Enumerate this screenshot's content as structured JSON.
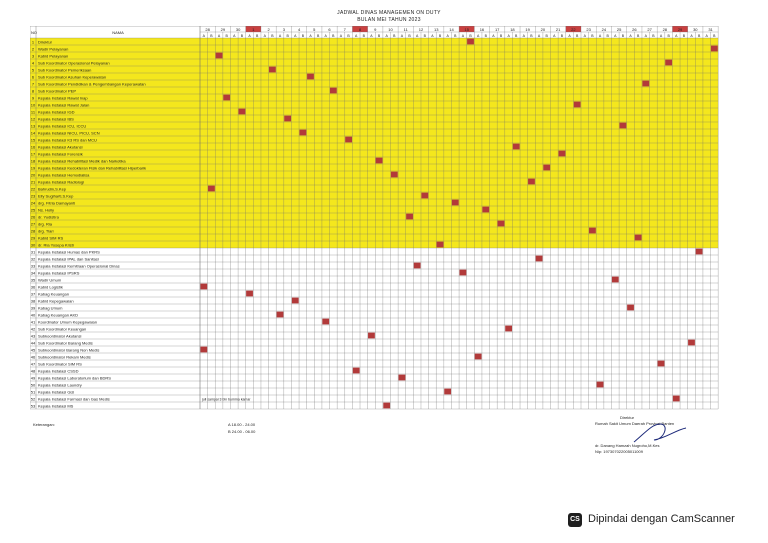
{
  "header": {
    "title": "JADWAL DINAS  MANAGEMEN ON DUTY",
    "subtitle": "BULAN MEI  TAHUN 2023"
  },
  "table": {
    "no_label": "NO",
    "name_label": "NAMA",
    "dates": [
      "28",
      "29",
      "30",
      "1",
      "2",
      "3",
      "4",
      "5",
      "6",
      "7",
      "8",
      "9",
      "10",
      "11",
      "12",
      "13",
      "14",
      "15",
      "16",
      "17",
      "18",
      "19",
      "20",
      "21",
      "22",
      "23",
      "24",
      "25",
      "26",
      "27",
      "28",
      "29",
      "30",
      "31"
    ],
    "shift_labels": [
      "A",
      "B"
    ],
    "highlight_rows": 30,
    "colors": {
      "yellow": "#f4e71d",
      "red": "#b23a3a",
      "line": "#6f6f6f",
      "date_red": "#c94040"
    },
    "rows": [
      {
        "no": "1",
        "name": "Direktur",
        "a": 35
      },
      {
        "no": "2",
        "name": "Wadir Pelayanan",
        "a": 67
      },
      {
        "no": "3",
        "name": "Kabid Pelayanan",
        "a": 2
      },
      {
        "no": "4",
        "name": "Sub Koordinator Operasional Pelayanan",
        "a": 61
      },
      {
        "no": "5",
        "name": "Sub Koordinator Pemeriksaan",
        "a": 9
      },
      {
        "no": "6",
        "name": "Sub Koordinator Asuhan Keperawatan",
        "a": 14
      },
      {
        "no": "7",
        "name": "Sub Koordinator Pendidikan & Pengembangan Keperawatan",
        "a": 58
      },
      {
        "no": "8",
        "name": "Sub Koordinator PEP",
        "a": 17
      },
      {
        "no": "9",
        "name": "Kepala Instalasi Rawat Inap",
        "a": 3
      },
      {
        "no": "10",
        "name": "Kepala Instalasi Rawat Jalan",
        "a": 49
      },
      {
        "no": "11",
        "name": "Kepala Instalasi IGD",
        "a": 5
      },
      {
        "no": "12",
        "name": "Kepala Instalasi IBS",
        "a": 11
      },
      {
        "no": "13",
        "name": "Kepala Instalasi ICU, ICCU",
        "a": 55
      },
      {
        "no": "14",
        "name": "Kepala Instalasi NICU, PICU, SCN",
        "a": 13
      },
      {
        "no": "15",
        "name": "Kepala Instalasi K3 RS dan MCU",
        "a": 19
      },
      {
        "no": "16",
        "name": "Kepala Instalasi Akutansi",
        "a": 41
      },
      {
        "no": "17",
        "name": "Kepala Instalasi Forensik",
        "a": 47
      },
      {
        "no": "18",
        "name": "Kepala Instalasi Rehabilitasi Medik dan Narkotika",
        "a": 23
      },
      {
        "no": "19",
        "name": "Kepala Instalasi Kedokteran Fisik dan Rehabilitasi Hiperbarik",
        "a": 45
      },
      {
        "no": "20",
        "name": "Kepala Instalasi Hemodialisa",
        "a": 25
      },
      {
        "no": "21",
        "name": "Kepala Instalasi Radiologi",
        "a": 43
      },
      {
        "no": "22",
        "name": "Bahrudin,S.Kep",
        "a": 1
      },
      {
        "no": "23",
        "name": "Elly Sugiharti,S.Kep",
        "a": 29
      },
      {
        "no": "24",
        "name": "drg. Fitria Damayanti",
        "a": 33
      },
      {
        "no": "25",
        "name": "Ns. Holly",
        "a": 37
      },
      {
        "no": "26",
        "name": "dr. Yudistira",
        "a": 27
      },
      {
        "no": "27",
        "name": "drg. Ria",
        "a": 39
      },
      {
        "no": "28",
        "name": "drg. Tiari",
        "a": 51
      },
      {
        "no": "29",
        "name": "Kabid SIM RS",
        "a": 57
      },
      {
        "no": "30",
        "name": "dr. Ria Yosepa Kristi",
        "a": 31
      },
      {
        "no": "31",
        "name": "Kepala Instalasi Humas dan PKRS",
        "a": 65
      },
      {
        "no": "32",
        "name": "Kepala Instalasi IPAL dan Sanitasi",
        "a": 44
      },
      {
        "no": "33",
        "name": "Kepala Instalasi Kemitraan Operasional Dinas",
        "a": 28
      },
      {
        "no": "34",
        "name": "Kepala Instalasi IPSRS",
        "a": 34
      },
      {
        "no": "35",
        "name": "Wadir Umum",
        "a": 54
      },
      {
        "no": "36",
        "name": "Kabid Logistik",
        "a": 0
      },
      {
        "no": "37",
        "name": "Kabag Keuangan",
        "a": 6
      },
      {
        "no": "38",
        "name": "Kabid Kepegawaian",
        "a": 12
      },
      {
        "no": "39",
        "name": "Kabag Umum",
        "a": 56
      },
      {
        "no": "40",
        "name": "Kabag Keuangan AKD",
        "a": 10
      },
      {
        "no": "41",
        "name": "Koordinator Umum Kepegawaian",
        "a": 16
      },
      {
        "no": "42",
        "name": "Sub Koordinator Keuangan",
        "a": 40
      },
      {
        "no": "43",
        "name": "Subkoordinator Akutansi",
        "a": 22
      },
      {
        "no": "44",
        "name": "Sub Koordinator Barang Medis",
        "a": 64
      },
      {
        "no": "45",
        "name": "Subkoordinator Barang Non Medis",
        "a": 0
      },
      {
        "no": "46",
        "name": "Subkoordinator Rekam Medis",
        "a": 36
      },
      {
        "no": "47",
        "name": "Sub Koordinator SIM RS",
        "a": 60
      },
      {
        "no": "48",
        "name": "Kepala Instalasi CSSD",
        "a": 20
      },
      {
        "no": "49",
        "name": "Kepala Instalasi Laboratorium dan BDRS",
        "a": 26
      },
      {
        "no": "50",
        "name": "Kepala Instalasi Laundry",
        "a": 52
      },
      {
        "no": "51",
        "name": "Kepala Instalasi Gizi",
        "a": 32
      },
      {
        "no": "52",
        "name": "Kepala Instalasi Farmasi dan Gas Medis",
        "a": 62
      },
      {
        "no": "53",
        "name": "Kepala Instalasi MS",
        "a": 24
      }
    ],
    "note_row52": "juli sampai 3 bln bumma kamar"
  },
  "footer": {
    "keterangan_label": "Keterangan:",
    "legend_a": "A  18.00 - 24.00",
    "legend_b": "B  24.00 - 06.00",
    "sign_title": "Direktur",
    "sign_org": "Rumah Sakit Umum Daerah Provinsi Banten",
    "sign_name": "dr. Danang Hamzah Nugroho,M.Kes",
    "sign_nip": "Nip: 197307022005011009"
  },
  "scanner": {
    "badge": "CS",
    "text": "Dipindai dengan CamScanner"
  }
}
